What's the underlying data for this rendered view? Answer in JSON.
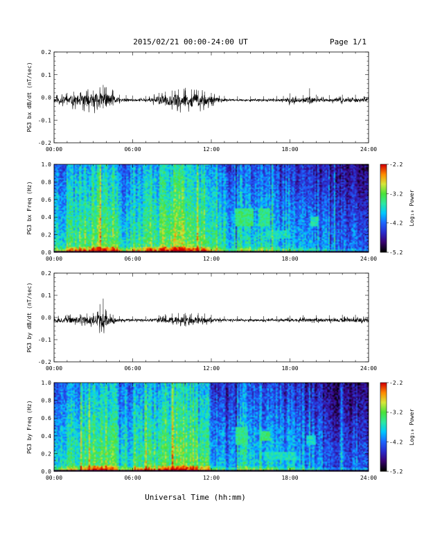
{
  "header": {
    "date_range": "2015/02/21  00:00-24:00 UT",
    "page": "Page 1/1"
  },
  "footer": {
    "xlabel": "Universal Time (hh:mm)"
  },
  "colors": {
    "trace": "#000000",
    "colormap": [
      "#000000",
      "#3a0070",
      "#2b2bcc",
      "#1e66ff",
      "#00c8ff",
      "#2ee8a0",
      "#49e23a",
      "#d6e63a",
      "#ff8c00",
      "#d40000"
    ]
  },
  "chart_data": [
    {
      "id": "bx-timeseries",
      "type": "line",
      "ylabel": "PG3 bx dB/dt (nT/sec)",
      "x_ticks": [
        "00:00",
        "06:00",
        "12:00",
        "18:00",
        "24:00"
      ],
      "xlim": [
        0,
        24
      ],
      "ylim": [
        -0.2,
        0.2
      ],
      "y_ticks": [
        "0.2",
        "0.1",
        "0.0",
        "-0.1",
        "-0.2"
      ],
      "series": [
        {
          "x": [
            0,
            1,
            1.5,
            2,
            2.5,
            3,
            3.5,
            3.75,
            4,
            4.5,
            5,
            5.5,
            6,
            7,
            8,
            8.5,
            9,
            9.5,
            10,
            10.5,
            11,
            11.5,
            12,
            13,
            14,
            15,
            16,
            17,
            17.5,
            18,
            19,
            19.5,
            20,
            21,
            22,
            23,
            24
          ],
          "y": [
            -0.01,
            0.02,
            0.025,
            0.02,
            0.025,
            0.03,
            0.04,
            0.055,
            0.045,
            0.03,
            0.012,
            0.01,
            0.008,
            0.006,
            0.02,
            0.025,
            0.03,
            0.035,
            0.03,
            0.035,
            0.03,
            0.025,
            0.02,
            0.006,
            0.005,
            0.005,
            0.005,
            0.006,
            0.006,
            0.018,
            0.01,
            0.04,
            0.012,
            0.01,
            0.012,
            0.012,
            0.012
          ],
          "amplitude": [
            0.015,
            0.035,
            0.04,
            0.035,
            0.045,
            0.05,
            0.055,
            0.06,
            0.05,
            0.04,
            0.015,
            0.012,
            0.01,
            0.008,
            0.03,
            0.04,
            0.045,
            0.05,
            0.045,
            0.05,
            0.045,
            0.04,
            0.03,
            0.008,
            0.007,
            0.007,
            0.007,
            0.008,
            0.008,
            0.025,
            0.012,
            0.03,
            0.015,
            0.012,
            0.015,
            0.015,
            0.015
          ]
        }
      ]
    },
    {
      "id": "bx-spectrogram",
      "type": "heatmap",
      "ylabel": "PG3 bx Freq (Hz)",
      "x_ticks": [
        "00:00",
        "06:00",
        "12:00",
        "18:00",
        "24:00"
      ],
      "xlim": [
        0,
        24
      ],
      "ylim": [
        0,
        1.0
      ],
      "y_ticks": [
        "1.0",
        "0.8",
        "0.6",
        "0.4",
        "0.2",
        "0.0"
      ],
      "colorbar": {
        "label": "Log₁₀ Power",
        "ticks": [
          "-2.2",
          "-3.2",
          "-4.2",
          "-5.2"
        ],
        "range": [
          -5.2,
          -2.2
        ]
      },
      "hour_activity": [
        0.55,
        0.62,
        0.66,
        0.72,
        0.68,
        0.55,
        0.6,
        0.66,
        0.7,
        0.74,
        0.72,
        0.66,
        0.52,
        0.42,
        0.56,
        0.54,
        0.5,
        0.44,
        0.46,
        0.42,
        0.38,
        0.36,
        0.36,
        0.36
      ],
      "features": [
        {
          "name": "pc1-band-1",
          "t": [
            13.8,
            15.2
          ],
          "f": [
            0.3,
            0.5
          ],
          "level": -3.4
        },
        {
          "name": "pc1-band-2",
          "t": [
            15.6,
            16.5
          ],
          "f": [
            0.3,
            0.5
          ],
          "level": -3.5
        },
        {
          "name": "pc1-band-3",
          "t": [
            16.2,
            18.0
          ],
          "f": [
            0.15,
            0.25
          ],
          "level": -3.7
        },
        {
          "name": "pc1-band-4",
          "t": [
            19.6,
            20.2
          ],
          "f": [
            0.3,
            0.4
          ],
          "level": -3.6
        }
      ]
    },
    {
      "id": "by-timeseries",
      "type": "line",
      "ylabel": "PG3 by dB/dt (nT/sec)",
      "x_ticks": [
        "00:00",
        "06:00",
        "12:00",
        "18:00",
        "24:00"
      ],
      "xlim": [
        0,
        24
      ],
      "ylim": [
        -0.2,
        0.2
      ],
      "y_ticks": [
        "0.2",
        "0.1",
        "0.0",
        "-0.1",
        "-0.2"
      ],
      "series": [
        {
          "x": [
            0,
            1,
            2,
            2.5,
            3,
            3.3,
            3.5,
            3.75,
            4,
            4.5,
            5,
            6,
            7,
            8,
            8.5,
            9,
            9.5,
            10,
            10.5,
            11,
            11.5,
            12,
            13,
            14,
            15,
            16,
            17,
            18,
            19,
            20,
            21,
            22,
            23,
            24
          ],
          "y": [
            0.012,
            0.012,
            0.015,
            0.018,
            0.02,
            0.025,
            0.06,
            0.085,
            0.03,
            0.012,
            0.006,
            0.005,
            0.005,
            0.01,
            0.015,
            0.018,
            0.02,
            0.02,
            0.018,
            0.02,
            0.018,
            0.012,
            0.005,
            0.006,
            0.006,
            0.006,
            0.006,
            0.008,
            0.01,
            0.01,
            0.01,
            0.012,
            0.012,
            0.012
          ],
          "amplitude": [
            0.02,
            0.02,
            0.025,
            0.03,
            0.035,
            0.04,
            0.05,
            0.055,
            0.04,
            0.02,
            0.01,
            0.008,
            0.008,
            0.015,
            0.02,
            0.025,
            0.025,
            0.025,
            0.025,
            0.025,
            0.02,
            0.015,
            0.008,
            0.008,
            0.008,
            0.008,
            0.008,
            0.01,
            0.012,
            0.012,
            0.012,
            0.015,
            0.015,
            0.015
          ]
        }
      ]
    },
    {
      "id": "by-spectrogram",
      "type": "heatmap",
      "ylabel": "PG3 by Freq (Hz)",
      "x_ticks": [
        "00:00",
        "06:00",
        "12:00",
        "18:00",
        "24:00"
      ],
      "xlim": [
        0,
        24
      ],
      "ylim": [
        0,
        1.0
      ],
      "y_ticks": [
        "1.0",
        "0.8",
        "0.6",
        "0.4",
        "0.2",
        "0.0"
      ],
      "colorbar": {
        "label": "Log₁₀ Power",
        "ticks": [
          "-2.2",
          "-3.2",
          "-4.2",
          "-5.2"
        ],
        "range": [
          -5.2,
          -2.2
        ]
      },
      "hour_activity": [
        0.5,
        0.58,
        0.64,
        0.7,
        0.64,
        0.5,
        0.56,
        0.62,
        0.66,
        0.72,
        0.7,
        0.62,
        0.48,
        0.4,
        0.54,
        0.5,
        0.48,
        0.42,
        0.44,
        0.4,
        0.36,
        0.34,
        0.34,
        0.34
      ],
      "features": [
        {
          "name": "pc1-band-1",
          "t": [
            13.8,
            14.8
          ],
          "f": [
            0.3,
            0.5
          ],
          "level": -3.5
        },
        {
          "name": "pc1-band-2",
          "t": [
            15.8,
            16.5
          ],
          "f": [
            0.35,
            0.45
          ],
          "level": -3.4
        },
        {
          "name": "pc1-band-3",
          "t": [
            16.0,
            18.5
          ],
          "f": [
            0.12,
            0.22
          ],
          "level": -3.7
        },
        {
          "name": "pc1-band-4",
          "t": [
            19.2,
            20.0
          ],
          "f": [
            0.3,
            0.4
          ],
          "level": -3.7
        }
      ]
    }
  ]
}
